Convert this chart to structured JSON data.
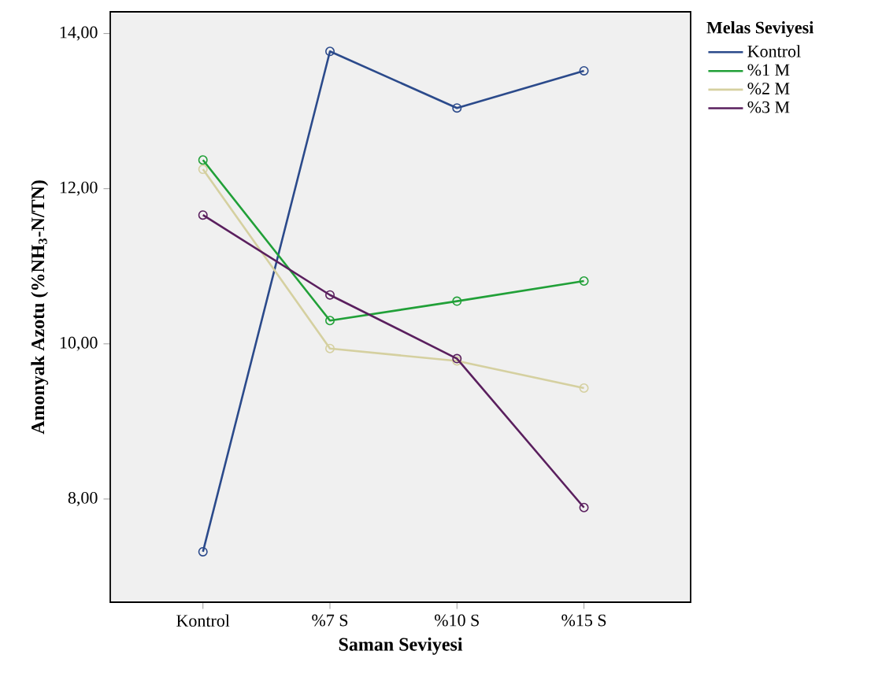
{
  "chart_data": {
    "type": "line",
    "xlabel": "Saman Seviyesi",
    "ylabel": "Amonyak Azotu (%NH$_{3}$-N/TN)",
    "legend_title": "Melas Seviyesi",
    "categories": [
      "Kontrol",
      "%7 S",
      "%10 S",
      "%15 S"
    ],
    "series": [
      {
        "name": "Kontrol",
        "color": "#2b4a8b",
        "values": [
          7.32,
          13.77,
          13.04,
          13.52
        ]
      },
      {
        "name": "%1 M",
        "color": "#21a038",
        "values": [
          12.37,
          10.3,
          10.55,
          10.81
        ]
      },
      {
        "name": "%2 M",
        "color": "#d5d0a0",
        "values": [
          12.25,
          9.94,
          9.78,
          9.43
        ]
      },
      {
        "name": "%3 M",
        "color": "#5a1f5e",
        "values": [
          11.66,
          10.63,
          9.81,
          7.89
        ]
      }
    ],
    "ylim": [
      6.67,
      14.28
    ],
    "yticks": [
      {
        "value": 8,
        "label": "8,00"
      },
      {
        "value": 10,
        "label": "10,00"
      },
      {
        "value": 12,
        "label": "12,00"
      },
      {
        "value": 14,
        "label": "14,00"
      }
    ],
    "marker": "circle",
    "line_style": "solid",
    "grid": false,
    "legend": "top right"
  }
}
